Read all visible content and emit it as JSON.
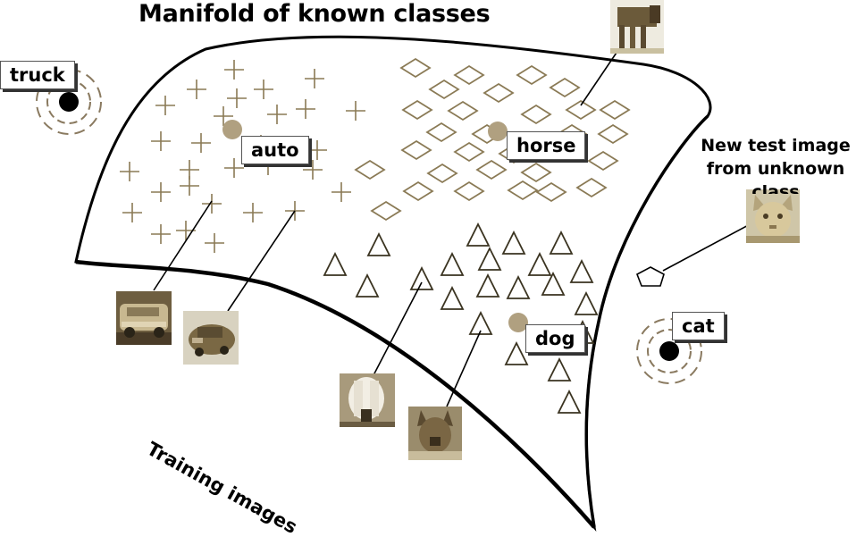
{
  "title": "Manifold of known classes",
  "labels": {
    "truck": "truck",
    "auto": "auto",
    "horse": "horse",
    "dog": "dog",
    "cat": "cat",
    "training": "Training images",
    "new_test_line1": "New test image",
    "new_test_line2": "from unknown",
    "new_test_line3": "class"
  },
  "colors": {
    "manifold_outline": "#000000",
    "marker_stroke": "#8a7a55",
    "centroid": "#b0a080",
    "sample_dot": "#000000",
    "ripple": "#8a7a60"
  },
  "thumbnails": {
    "horse": "horse-photo",
    "auto_1": "car-photo",
    "auto_2": "car-photo",
    "dog_1": "dog-photo",
    "dog_2": "dog-photo",
    "unknown": "cat-photo"
  }
}
